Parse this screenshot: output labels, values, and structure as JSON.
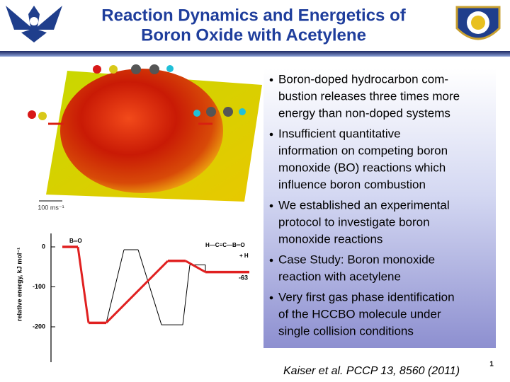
{
  "header": {
    "title_lines": [
      "Reaction Dynamics and Energetics of",
      "Boron Oxide with Acetylene"
    ]
  },
  "figure": {
    "scale_label": "100 ms⁻¹"
  },
  "energy_diagram": {
    "y_label": "relative energy, kJ mol⁻¹",
    "yticks": [
      0,
      -100,
      -200
    ],
    "red_levels": [
      0,
      -190,
      -35,
      -63
    ],
    "black_levels": [
      -7,
      -195,
      -45
    ],
    "product_label": "-63",
    "species": [
      "B═O",
      "H—C≡C—B═O",
      "+ H"
    ]
  },
  "bullets": [
    {
      "lines": [
        "Boron-doped hydrocarbon com-",
        "bustion releases three times more",
        "energy than non-doped systems"
      ]
    },
    {
      "lines": [
        "Insufficient quantitative",
        "information on competing boron",
        "monoxide (BO) reactions which",
        "influence boron combustion"
      ]
    },
    {
      "lines": [
        "We established an experimental",
        "protocol to investigate boron",
        "monoxide reactions"
      ]
    },
    {
      "lines": [
        "Case Study: Boron monoxide",
        "reaction with acetylene"
      ]
    },
    {
      "lines": [
        "Very first gas phase identification",
        "of the HCCBO molecule under",
        "single collision conditions"
      ]
    }
  ],
  "citation": "Kaiser et al. PCCP 13, 8560 (2011)",
  "page_number": "1"
}
